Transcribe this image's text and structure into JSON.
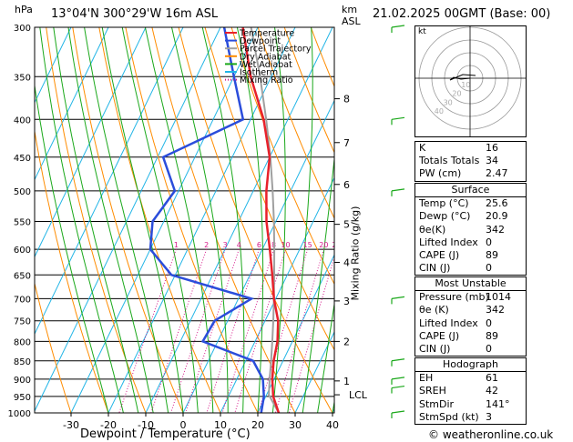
{
  "header": {
    "hpa_label": "hPa",
    "location": "13°04'N 300°29'W 16m ASL",
    "km_label": "km",
    "asl_label": "ASL",
    "datetime": "21.02.2025 00GMT (Base: 00)"
  },
  "chart_data": {
    "type": "skew-t",
    "pressure_levels": [
      300,
      350,
      400,
      450,
      500,
      550,
      600,
      650,
      700,
      750,
      800,
      850,
      900,
      950,
      1000
    ],
    "x_ticks": [
      -30,
      -20,
      -10,
      0,
      10,
      20,
      30,
      40
    ],
    "xlim": [
      -40,
      40
    ],
    "xlabel": "Dewpoint / Temperature (°C)",
    "ylabel": "Mixing Ratio (g/kg)",
    "km_ticks": [
      {
        "km": "1",
        "p": 905
      },
      {
        "km": "2",
        "p": 800
      },
      {
        "km": "3",
        "p": 705
      },
      {
        "km": "4",
        "p": 625
      },
      {
        "km": "5",
        "p": 555
      },
      {
        "km": "6",
        "p": 490
      },
      {
        "km": "7",
        "p": 430
      },
      {
        "km": "8",
        "p": 375
      }
    ],
    "lcl_label": "LCL",
    "lcl_pressure": 945,
    "mixing_ratio_labels": [
      "1",
      "2",
      "3",
      "4",
      "6",
      "8",
      "10",
      "15",
      "20",
      "25"
    ],
    "mixing_ratio_values": [
      1,
      2,
      3,
      4,
      6,
      8,
      10,
      15,
      20,
      25
    ],
    "legend": [
      "Temperature",
      "Dewpoint",
      "Parcel Trajectory",
      "Dry Adiabat",
      "Wet Adiabat",
      "Isotherm",
      "Mixing Ratio"
    ],
    "colors": {
      "temperature": "#e8212b",
      "dewpoint": "#2b4ddb",
      "parcel": "#a0a0a0",
      "dry_adiabat": "#ff8c00",
      "wet_adiabat": "#1aa81a",
      "isotherm": "#22b5e6",
      "mixing_ratio": "#d6188a"
    },
    "temperature_profile": [
      {
        "p": 1000,
        "t": 25.6
      },
      {
        "p": 950,
        "t": 22.0
      },
      {
        "p": 900,
        "t": 19.5
      },
      {
        "p": 850,
        "t": 17.5
      },
      {
        "p": 800,
        "t": 16.0
      },
      {
        "p": 750,
        "t": 13.5
      },
      {
        "p": 700,
        "t": 9.5
      },
      {
        "p": 650,
        "t": 6.0
      },
      {
        "p": 600,
        "t": 2.0
      },
      {
        "p": 550,
        "t": -2.5
      },
      {
        "p": 500,
        "t": -6.5
      },
      {
        "p": 450,
        "t": -10.0
      },
      {
        "p": 400,
        "t": -16.5
      },
      {
        "p": 350,
        "t": -25.5
      },
      {
        "p": 300,
        "t": -34.0
      }
    ],
    "dewpoint_profile": [
      {
        "p": 1000,
        "t": 20.9
      },
      {
        "p": 950,
        "t": 19.5
      },
      {
        "p": 900,
        "t": 17.0
      },
      {
        "p": 850,
        "t": 12.0
      },
      {
        "p": 800,
        "t": -4.0
      },
      {
        "p": 750,
        "t": -3.5
      },
      {
        "p": 700,
        "t": 3.5
      },
      {
        "p": 650,
        "t": -21.0
      },
      {
        "p": 600,
        "t": -30.0
      },
      {
        "p": 550,
        "t": -33.0
      },
      {
        "p": 500,
        "t": -31.0
      },
      {
        "p": 450,
        "t": -38.5
      },
      {
        "p": 400,
        "t": -22.0
      },
      {
        "p": 350,
        "t": -30.0
      },
      {
        "p": 300,
        "t": -39.0
      }
    ],
    "parcel_profile": [
      {
        "p": 1000,
        "t": 25.6
      },
      {
        "p": 945,
        "t": 20.6
      },
      {
        "p": 900,
        "t": 18.8
      },
      {
        "p": 850,
        "t": 16.8
      },
      {
        "p": 800,
        "t": 14.6
      },
      {
        "p": 750,
        "t": 12.2
      },
      {
        "p": 700,
        "t": 9.5
      },
      {
        "p": 650,
        "t": 6.5
      },
      {
        "p": 600,
        "t": 3.2
      },
      {
        "p": 550,
        "t": -0.5
      },
      {
        "p": 500,
        "t": -4.8
      },
      {
        "p": 450,
        "t": -9.8
      },
      {
        "p": 400,
        "t": -15.8
      },
      {
        "p": 350,
        "t": -23.0
      },
      {
        "p": 300,
        "t": -31.8
      }
    ]
  },
  "hodograph": {
    "unit_label": "kt",
    "ring_labels": [
      "10",
      "20",
      "30",
      "40"
    ]
  },
  "indices": [
    {
      "label": "K",
      "value": "16"
    },
    {
      "label": "Totals Totals",
      "value": "34"
    },
    {
      "label": "PW (cm)",
      "value": "2.47"
    }
  ],
  "surface": {
    "title": "Surface",
    "rows": [
      {
        "label": "Temp (°C)",
        "value": "25.6"
      },
      {
        "label": "Dewp (°C)",
        "value": "20.9"
      },
      {
        "label": "θe(K)",
        "value": "342"
      },
      {
        "label": "Lifted Index",
        "value": "0"
      },
      {
        "label": "CAPE (J)",
        "value": "89"
      },
      {
        "label": "CIN (J)",
        "value": "0"
      }
    ]
  },
  "most_unstable": {
    "title": "Most Unstable",
    "rows": [
      {
        "label": "Pressure (mb)",
        "value": "1014"
      },
      {
        "label": "θe (K)",
        "value": "342"
      },
      {
        "label": "Lifted Index",
        "value": "0"
      },
      {
        "label": "CAPE (J)",
        "value": "89"
      },
      {
        "label": "CIN (J)",
        "value": "0"
      }
    ]
  },
  "hodograph_table": {
    "title": "Hodograph",
    "rows": [
      {
        "label": "EH",
        "value": "61"
      },
      {
        "label": "SREH",
        "value": "42"
      },
      {
        "label": "StmDir",
        "value": "141°"
      },
      {
        "label": "StmSpd (kt)",
        "value": "3"
      }
    ]
  },
  "footer": {
    "copyright": "© weatheronline.co.uk"
  }
}
